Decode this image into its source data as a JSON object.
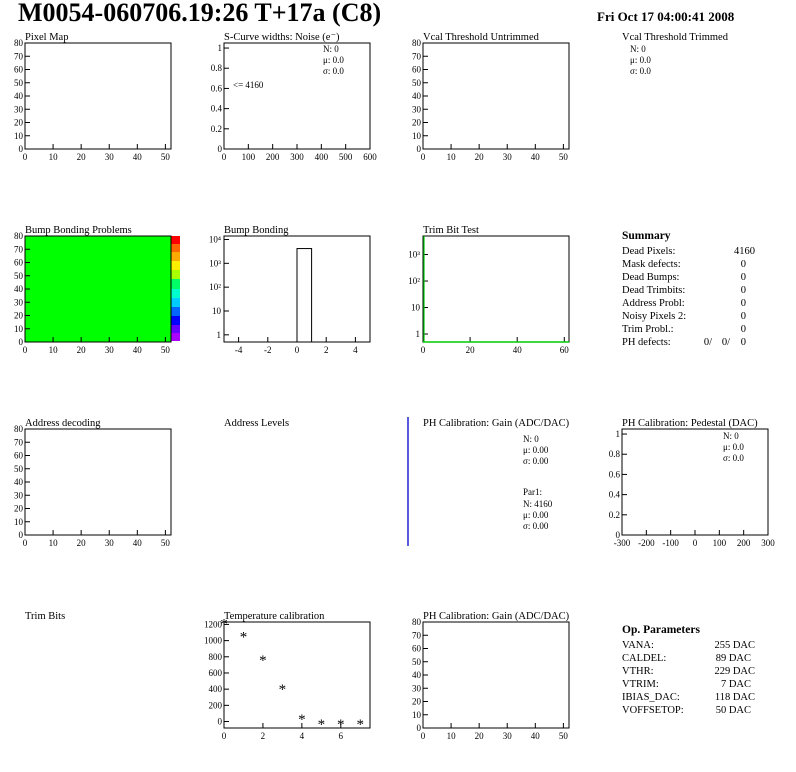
{
  "header": {
    "title": "M0054-060706.19:26 T+17a (C8)",
    "date": "Fri Oct 17 04:00:41 2008"
  },
  "colors": {
    "bump_map_fill": "#00ff00",
    "blue": "#0000cc",
    "red": "#cc0000",
    "trim_line": "#00cc00"
  },
  "panels": {
    "pixel_map": {
      "title": "Pixel Map"
    },
    "scurve": {
      "title": "S-Curve widths: Noise (e⁻)",
      "stats": {
        "n": "N:    0",
        "mu": "μ:  0.0",
        "sigma": "σ:  0.0"
      },
      "underflow": "<= 4160"
    },
    "vcal_untrimmed": {
      "title": "Vcal Threshold Untrimmed"
    },
    "vcal_trimmed": {
      "title": "Vcal Threshold Trimmed",
      "stats": {
        "n": "N:    0",
        "mu": "μ:  0.0",
        "sigma": "σ:  0.0"
      }
    },
    "bump_problems": {
      "title": "Bump Bonding Problems"
    },
    "bump_bonding": {
      "title": "Bump Bonding"
    },
    "trim_bit_test": {
      "title": "Trim Bit Test"
    },
    "address_decoding": {
      "title": "Address decoding"
    },
    "address_levels": {
      "title": "Address Levels"
    },
    "ph_gain": {
      "title": "PH Calibration: Gain (ADC/DAC)",
      "stats": {
        "n": "N:    0",
        "mu": "μ: 0.00",
        "sigma": "σ: 0.00"
      },
      "par": {
        "label": "Par1:",
        "n": "N: 4160",
        "mu": "μ: 0.00",
        "sigma": "σ: 0.00"
      }
    },
    "ph_pedestal": {
      "title": "PH Calibration: Pedestal (DAC)",
      "stats": {
        "n": "N:    0",
        "mu": "μ:  0.0",
        "sigma": "σ:  0.0"
      }
    },
    "trim_bits": {
      "title": "Trim Bits"
    },
    "temperature": {
      "title": "Temperature calibration"
    },
    "ph_gain2": {
      "title": "PH Calibration: Gain (ADC/DAC)"
    }
  },
  "summary": {
    "title": "Summary",
    "rows": [
      {
        "label": "Dead Pixels:",
        "value": "4160"
      },
      {
        "label": "Mask defects:",
        "value": "0"
      },
      {
        "label": "Dead Bumps:",
        "value": "0"
      },
      {
        "label": "Dead Trimbits:",
        "value": "0"
      },
      {
        "label": "Address Probl:",
        "value": "0"
      },
      {
        "label": "Noisy Pixels 2:",
        "value": "0"
      },
      {
        "label": "Trim Probl.:",
        "value": "0"
      }
    ],
    "ph_defects": {
      "label": "PH defects:",
      "v1": "0/",
      "v2": "0/",
      "v3": "0"
    }
  },
  "op_params": {
    "title": "Op. Parameters",
    "rows": [
      {
        "label": "VANA:",
        "value": "255 DAC"
      },
      {
        "label": "CALDEL:",
        "value": "89 DAC"
      },
      {
        "label": "VTHR:",
        "value": "229 DAC"
      },
      {
        "label": "VTRIM:",
        "value": "7 DAC"
      },
      {
        "label": "IBIAS_DAC:",
        "value": "118 DAC"
      },
      {
        "label": "VOFFSETOP:",
        "value": "50 DAC"
      }
    ]
  },
  "chart_data": [
    {
      "id": "pixel_map",
      "type": "heatmap",
      "title": "Pixel Map",
      "xlim": [
        0,
        52
      ],
      "ylim": [
        0,
        80
      ],
      "xticks": [
        0,
        10,
        20,
        30,
        40,
        50
      ],
      "yticks": [
        0,
        10,
        20,
        30,
        40,
        50,
        60,
        70,
        80
      ]
    },
    {
      "id": "scurve",
      "type": "bar",
      "title": "S-Curve widths: Noise (e⁻)",
      "xlim": [
        0,
        600
      ],
      "ylim": [
        0,
        1.05
      ],
      "xticks": [
        0,
        100,
        200,
        300,
        400,
        500,
        600
      ],
      "yticks": [
        0,
        0.2,
        0.4,
        0.6,
        0.8,
        1
      ],
      "values": []
    },
    {
      "id": "vcal_untrimmed",
      "type": "heatmap",
      "title": "Vcal Threshold Untrimmed",
      "xlim": [
        0,
        52
      ],
      "ylim": [
        0,
        80
      ],
      "xticks": [
        0,
        10,
        20,
        30,
        40,
        50
      ],
      "yticks": [
        0,
        10,
        20,
        30,
        40,
        50,
        60,
        70,
        80
      ]
    },
    {
      "id": "bump_problems",
      "type": "heatmap",
      "title": "Bump Bonding Problems",
      "xlim": [
        0,
        52
      ],
      "ylim": [
        0,
        80
      ],
      "xticks": [
        0,
        10,
        20,
        30,
        40,
        50
      ],
      "yticks": [
        0,
        10,
        20,
        30,
        40,
        50,
        60,
        70,
        80
      ],
      "values": "all cells = 0 (uniform fill)",
      "zlim": [
        -5,
        5
      ]
    },
    {
      "id": "bump_bonding",
      "type": "bar",
      "title": "Bump Bonding",
      "log_y": true,
      "xlim": [
        -5,
        5
      ],
      "ylim": [
        0.5,
        14000
      ],
      "xticks": [
        -4,
        -2,
        0,
        2,
        4
      ],
      "yticks": [
        "1",
        "10",
        "10²",
        "10³",
        "10⁴"
      ],
      "bins": [
        {
          "x0": 0,
          "x1": 1,
          "value": 4160
        }
      ]
    },
    {
      "id": "trim_bit_test",
      "type": "line",
      "title": "Trim Bit Test",
      "log_y": true,
      "xlim": [
        0,
        62
      ],
      "ylim": [
        0.5,
        5000
      ],
      "xticks": [
        0,
        20,
        40,
        60
      ],
      "yticks": [
        "1",
        "10",
        "10²",
        "10³"
      ],
      "series": [
        {
          "x": [
            0,
            62
          ],
          "y": [
            0,
            0
          ]
        }
      ]
    },
    {
      "id": "address_decoding",
      "type": "heatmap",
      "title": "Address decoding",
      "xlim": [
        0,
        52
      ],
      "ylim": [
        0,
        80
      ],
      "xticks": [
        0,
        10,
        20,
        30,
        40,
        50
      ],
      "yticks": [
        0,
        10,
        20,
        30,
        40,
        50,
        60,
        70,
        80
      ]
    },
    {
      "id": "ph_pedestal",
      "type": "bar",
      "title": "PH Calibration: Pedestal (DAC)",
      "xlim": [
        -300,
        300
      ],
      "ylim": [
        0,
        1.05
      ],
      "xticks": [
        -300,
        -200,
        -100,
        0,
        100,
        200,
        300
      ],
      "yticks": [
        0,
        0.2,
        0.4,
        0.6,
        0.8,
        1
      ],
      "values": []
    },
    {
      "id": "temperature",
      "type": "scatter",
      "title": "Temperature calibration",
      "xlim": [
        0,
        7.5
      ],
      "ylim": [
        -80,
        1230
      ],
      "xticks": [
        0,
        2,
        4,
        6
      ],
      "yticks": [
        0,
        200,
        400,
        600,
        800,
        1000,
        1200
      ],
      "series": [
        {
          "x": [
            0,
            1,
            2,
            3,
            4,
            5,
            6,
            7
          ],
          "y": [
            1210,
            1050,
            760,
            400,
            30,
            -30,
            -30,
            -30
          ]
        }
      ]
    },
    {
      "id": "ph_gain2",
      "type": "heatmap",
      "title": "PH Calibration: Gain (ADC/DAC)",
      "xlim": [
        0,
        52
      ],
      "ylim": [
        0,
        80
      ],
      "xticks": [
        0,
        10,
        20,
        30,
        40,
        50
      ],
      "yticks": [
        0,
        10,
        20,
        30,
        40,
        50,
        60,
        70,
        80
      ]
    }
  ]
}
